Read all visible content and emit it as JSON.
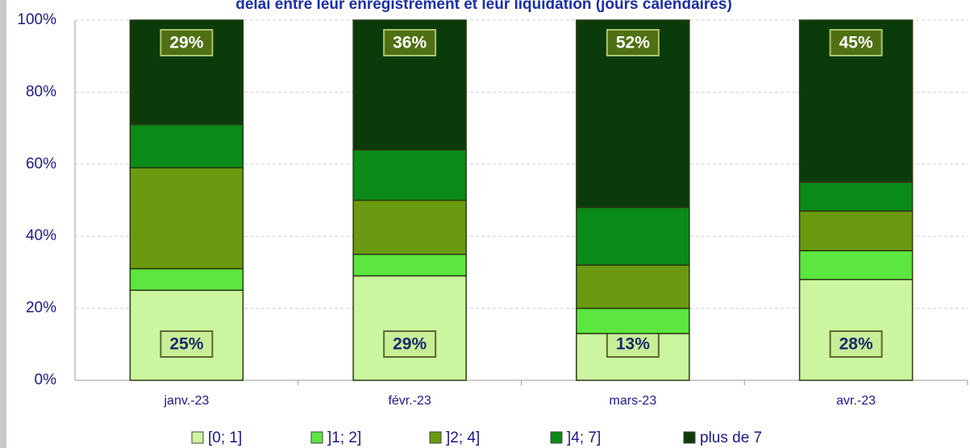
{
  "chart_data": {
    "type": "stacked_bar",
    "title": "délai entre leur enregistrement et leur liquidation (jours calendaires)",
    "categories": [
      "janv.-23",
      "févr.-23",
      "mars-23",
      "avr.-23"
    ],
    "series": [
      {
        "name": "[0; 1]",
        "color": "#ccf5a0",
        "values": [
          25,
          29,
          13,
          28
        ],
        "value_labels": [
          "25%",
          "29%",
          "13%",
          "28%"
        ]
      },
      {
        "name": "]1; 2]",
        "color": "#5ce640",
        "values": [
          6,
          6,
          7,
          8
        ]
      },
      {
        "name": "]2; 4]",
        "color": "#6b9a10",
        "values": [
          28,
          15,
          12,
          11
        ]
      },
      {
        "name": "]4; 7]",
        "color": "#0a8a18",
        "values": [
          12,
          14,
          16,
          8
        ]
      },
      {
        "name": "plus de 7",
        "color": "#0b3b0b",
        "values": [
          29,
          36,
          52,
          45
        ],
        "value_labels": [
          "29%",
          "36%",
          "52%",
          "45%"
        ]
      }
    ],
    "ylim": [
      0,
      100
    ],
    "yticks": [
      {
        "value": 0,
        "label": "0%"
      },
      {
        "value": 20,
        "label": "20%"
      },
      {
        "value": 40,
        "label": "40%"
      },
      {
        "value": 60,
        "label": "60%"
      },
      {
        "value": 80,
        "label": "80%"
      },
      {
        "value": 100,
        "label": "100%"
      }
    ],
    "grid": true,
    "legend": "bottom"
  }
}
